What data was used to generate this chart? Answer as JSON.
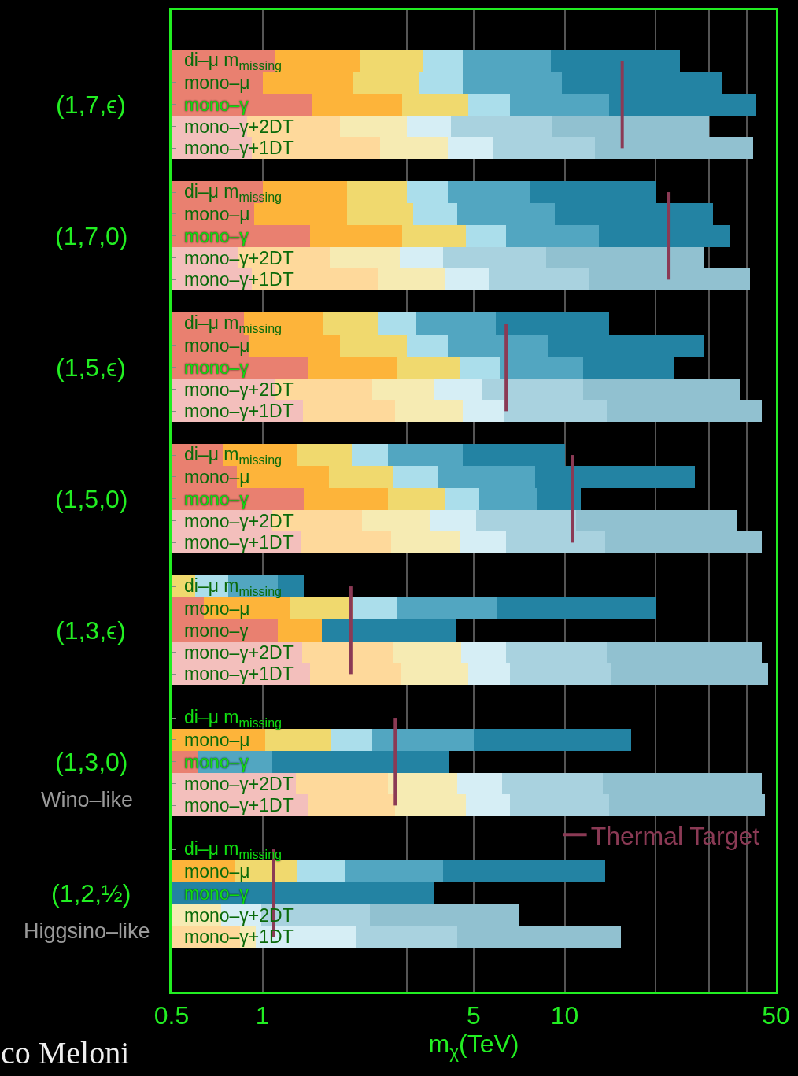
{
  "chart_data": {
    "type": "bar",
    "orientation": "horizontal",
    "log": "x",
    "xlabel": "m$_{χ}$(TeV)",
    "xlim": [
      0.5,
      50
    ],
    "xticks": [
      0.5,
      1,
      {
        "value": 3,
        "label": null
      },
      5,
      10,
      {
        "value": 20,
        "label": null
      },
      {
        "value": 30,
        "label": null
      },
      {
        "value": 40,
        "label": null
      },
      50
    ],
    "grid": "x",
    "legend": "bottom right",
    "categories": [
      "di–μ m$_{missing}$",
      "mono–μ",
      "mono–γ",
      "mono–γ+2DT",
      "mono–γ+1DT",
      null,
      "di–μ m$_{missing}$",
      "mono–μ",
      "mono–γ",
      "mono–γ+2DT",
      "mono–γ+1DT",
      null,
      "di–μ m$_{missing}$",
      "mono–μ",
      "mono–γ",
      "mono–γ+2DT",
      "mono–γ+1DT",
      null,
      "di–μ m$_{missing}$",
      "mono–μ",
      "mono–γ",
      "mono–γ+2DT",
      "mono–γ+1DT",
      null,
      "di–μ m$_{missing}$",
      "mono–μ",
      "mono–γ",
      "mono–γ+2DT",
      "mono–γ+1DT",
      null,
      "di–μ m$_{missing}$",
      "mono–μ",
      "mono–γ",
      "mono–γ+2DT",
      "mono–γ+1DT",
      null,
      "di–μ m$_{missing}$",
      "mono–μ",
      "mono–γ",
      "mono–γ+2DT",
      "mono–γ+1DT"
    ],
    "annotations": [
      "(1,7,ϵ)",
      "(1,7,0)",
      "(1,5,ϵ)",
      "(1,5,0)",
      "(1,3,ϵ)",
      "(1,3,0)",
      "(1,2,½)",
      "Wino–like",
      "Higgsino–like",
      "co Meloni"
    ],
    "series": [
      {
        "base": [
          0.5,
          0.5,
          0.5,
          0.5,
          0.5,
          null,
          0.5,
          0.5,
          0.5,
          0.5,
          0.5,
          null,
          0.5,
          0.5,
          0.5,
          0.5,
          0.5,
          null,
          0.5,
          0.5,
          0.5,
          0.5,
          0.5,
          null,
          null,
          0.5,
          0.5,
          0.5,
          0.5,
          null,
          null,
          null,
          0.5,
          0.5,
          0.5,
          null,
          null,
          null,
          null,
          null,
          null
        ],
        "values": [
          0.6,
          0.5,
          0.95,
          0.39,
          0.42,
          null,
          0.5,
          0.44,
          0.94,
          0.33,
          0.42,
          null,
          0.37,
          0.4,
          0.92,
          0.6,
          0.86,
          null,
          0.24,
          0.32,
          0.87,
          0.57,
          0.84,
          null,
          null,
          0.14,
          0.62,
          0.85,
          0.94,
          null,
          null,
          null,
          0.11,
          0.79,
          0.92,
          null,
          null,
          null,
          null,
          null,
          null
        ],
        "colors": [
          "#e98070",
          "#e98070",
          "#e98070",
          "#f3bfbc",
          "#f3bfbc",
          "#e98070",
          "#e98070",
          "#e98070",
          "#e98070",
          "#f3bfbc",
          "#f3bfbc",
          "#e98070",
          "#e98070",
          "#e98070",
          "#e98070",
          "#f3bfbc",
          "#f3bfbc",
          "#e98070",
          "#e98070",
          "#e98070",
          "#e98070",
          "#f3bfbc",
          "#f3bfbc",
          "#e98070",
          "#e98070",
          "#e98070",
          "#e98070",
          "#f3bfbc",
          "#f3bfbc",
          "#e98070",
          "#e98070",
          "#e98070",
          "#e98070",
          "#f3bfbc",
          "#f3bfbc",
          "#e98070",
          "#e98070",
          "#e98070",
          "#e98070",
          "#f3bfbc",
          "#f3bfbc"
        ]
      },
      {
        "base": [
          1.1,
          1.0,
          1.45,
          0.89,
          0.92,
          null,
          1.0,
          0.94,
          1.44,
          0.83,
          0.92,
          null,
          0.87,
          0.9,
          1.42,
          1.1,
          1.36,
          null,
          0.74,
          0.82,
          1.37,
          1.07,
          1.34,
          null,
          null,
          0.64,
          1.12,
          1.35,
          1.44,
          null,
          null,
          0.5,
          null,
          1.29,
          1.42,
          null,
          null,
          0.5,
          null,
          null,
          0.5
        ],
        "values": [
          1.0,
          1.0,
          1.45,
          0.91,
          1.53,
          null,
          0.9,
          0.96,
          1.46,
          0.84,
          1.48,
          null,
          0.71,
          0.9,
          1.38,
          1.2,
          1.39,
          null,
          0.56,
          0.84,
          1.23,
          1.07,
          1.33,
          null,
          null,
          0.6,
          0.45,
          1.35,
          1.43,
          null,
          null,
          0.52,
          null,
          1.31,
          1.33,
          null,
          null,
          0.31,
          null,
          null,
          0.34
        ],
        "colors": [
          "#fdb43a",
          "#fdb43a",
          "#fdb43a",
          "#fed99b",
          "#fed99b",
          "#fdb43a",
          "#fdb43a",
          "#fdb43a",
          "#fdb43a",
          "#fed99b",
          "#fed99b",
          "#fdb43a",
          "#fdb43a",
          "#fdb43a",
          "#fdb43a",
          "#fed99b",
          "#fed99b",
          "#fdb43a",
          "#fdb43a",
          "#fdb43a",
          "#fdb43a",
          "#fed99b",
          "#fed99b",
          "#fdb43a",
          "#fdb43a",
          "#fdb43a",
          "#fdb43a",
          "#fed99b",
          "#fed99b",
          "#fdb43a",
          "#fdb43a",
          "#fdb43a",
          "#fdb43a",
          "#fed99b",
          "#fed99b",
          "#fdb43a",
          "#fdb43a",
          "#fdb43a",
          "#fdb43a",
          "#fed99b",
          "#fed99b"
        ]
      },
      {
        "base": [
          2.1,
          2.0,
          2.9,
          1.8,
          2.45,
          null,
          1.9,
          1.9,
          2.9,
          1.67,
          2.4,
          null,
          1.58,
          1.8,
          2.8,
          2.3,
          2.75,
          null,
          1.3,
          1.66,
          2.6,
          2.14,
          2.67,
          null,
          0.5,
          1.24,
          null,
          2.7,
          2.87,
          null,
          null,
          1.02,
          null,
          2.6,
          2.75,
          null,
          null,
          0.81,
          null,
          0.5,
          0.84
        ],
        "values": [
          1.3,
          1.3,
          1.9,
          1.2,
          1.65,
          null,
          1.1,
          1.25,
          1.8,
          1.18,
          1.6,
          null,
          0.82,
          1.2,
          1.7,
          1.4,
          1.85,
          null,
          0.67,
          1.04,
          1.4,
          1.46,
          1.83,
          null,
          0.1,
          0.76,
          null,
          1.85,
          1.93,
          null,
          null,
          0.66,
          null,
          1.8,
          1.95,
          null,
          null,
          0.49,
          null,
          0.23,
          0.11
        ],
        "colors": [
          "#f0d96e",
          "#f0d96e",
          "#f0d96e",
          "#f6ebb3",
          "#f6ebb3",
          "#f0d96e",
          "#f0d96e",
          "#f0d96e",
          "#f0d96e",
          "#f6ebb3",
          "#f6ebb3",
          "#f0d96e",
          "#f0d96e",
          "#f0d96e",
          "#f0d96e",
          "#f6ebb3",
          "#f6ebb3",
          "#f0d96e",
          "#f0d96e",
          "#f0d96e",
          "#f0d96e",
          "#f6ebb3",
          "#f6ebb3",
          "#f0d96e",
          "#f0d96e",
          "#f0d96e",
          "#f0d96e",
          "#f6ebb3",
          "#f6ebb3",
          "#f0d96e",
          "#f0d96e",
          "#f0d96e",
          "#f0d96e",
          "#f6ebb3",
          "#f6ebb3",
          "#f0d96e",
          "#f0d96e",
          "#f0d96e",
          "#f0d96e",
          "#f6ebb3",
          "#f6ebb3"
        ]
      },
      {
        "base": [
          3.4,
          3.3,
          4.8,
          3.0,
          4.1,
          null,
          3.0,
          3.15,
          4.7,
          2.85,
          4.0,
          null,
          2.4,
          3.0,
          4.5,
          3.7,
          4.6,
          null,
          1.97,
          2.7,
          4.0,
          3.6,
          4.5,
          null,
          0.6,
          2.0,
          null,
          4.55,
          4.8,
          null,
          null,
          1.68,
          null,
          4.4,
          4.7,
          null,
          null,
          1.3,
          null,
          0.73,
          0.95
        ],
        "values": [
          1.2,
          1.3,
          1.8,
          1.2,
          1.7,
          null,
          1.1,
          1.25,
          1.7,
          1.1,
          1.6,
          null,
          0.8,
          1.1,
          1.6,
          1.6,
          1.7,
          null,
          0.63,
          1.1,
          1.2,
          1.5,
          1.9,
          null,
          0.17,
          0.8,
          null,
          1.85,
          1.8,
          null,
          null,
          0.62,
          null,
          1.8,
          1.9,
          null,
          null,
          0.57,
          null,
          0.26,
          1.09
        ],
        "colors": [
          "#abdeeb",
          "#abdeeb",
          "#abdeeb",
          "#d6eef5",
          "#d6eef5",
          "#abdeeb",
          "#abdeeb",
          "#abdeeb",
          "#abdeeb",
          "#d6eef5",
          "#d6eef5",
          "#abdeeb",
          "#abdeeb",
          "#abdeeb",
          "#abdeeb",
          "#d6eef5",
          "#d6eef5",
          "#abdeeb",
          "#abdeeb",
          "#abdeeb",
          "#abdeeb",
          "#d6eef5",
          "#d6eef5",
          "#abdeeb",
          "#abdeeb",
          "#abdeeb",
          "#abdeeb",
          "#d6eef5",
          "#d6eef5",
          "#abdeeb",
          "#abdeeb",
          "#abdeeb",
          "#abdeeb",
          "#d6eef5",
          "#d6eef5",
          "#abdeeb",
          "#abdeeb",
          "#abdeeb",
          "#abdeeb",
          "#d6eef5",
          "#d6eef5"
        ]
      },
      {
        "base": [
          4.6,
          4.6,
          6.6,
          4.2,
          5.8,
          null,
          4.1,
          4.4,
          6.4,
          3.95,
          5.6,
          null,
          3.2,
          4.1,
          6.1,
          5.3,
          6.3,
          null,
          2.6,
          3.8,
          5.2,
          5.1,
          6.4,
          null,
          0.77,
          2.8,
          null,
          6.4,
          6.6,
          null,
          null,
          2.3,
          0.61,
          6.2,
          6.6,
          null,
          null,
          1.87,
          null,
          0.99,
          2.04
        ],
        "values": [
          4.4,
          5.2,
          7.4,
          4.9,
          6.8,
          null,
          3.6,
          4.9,
          6.6,
          4.75,
          6.4,
          null,
          2.7,
          4.7,
          5.4,
          6.2,
          7.5,
          null,
          2.0,
          4.2,
          2.9,
          5.8,
          7.2,
          null,
          0.35,
          3.2,
          null,
          7.4,
          7.6,
          null,
          null,
          2.7,
          0.47,
          7.2,
          7.4,
          null,
          null,
          2.08,
          null,
          1.28,
          2.36
        ],
        "colors": [
          "#52a6c1",
          "#52a6c1",
          "#52a6c1",
          "#a9d2df",
          "#a9d2df",
          "#52a6c1",
          "#52a6c1",
          "#52a6c1",
          "#52a6c1",
          "#a9d2df",
          "#a9d2df",
          "#52a6c1",
          "#52a6c1",
          "#52a6c1",
          "#52a6c1",
          "#a9d2df",
          "#a9d2df",
          "#52a6c1",
          "#52a6c1",
          "#52a6c1",
          "#52a6c1",
          "#a9d2df",
          "#a9d2df",
          "#52a6c1",
          "#52a6c1",
          "#52a6c1",
          "#52a6c1",
          "#a9d2df",
          "#a9d2df",
          "#52a6c1",
          "#52a6c1",
          "#52a6c1",
          "#52a6c1",
          "#a9d2df",
          "#a9d2df",
          "#52a6c1",
          "#52a6c1",
          "#52a6c1",
          "#52a6c1",
          "#a9d2df",
          "#a9d2df"
        ]
      },
      {
        "base": [
          9.0,
          9.8,
          14,
          9.1,
          12.6,
          null,
          7.7,
          9.3,
          13,
          8.7,
          12,
          null,
          5.9,
          8.8,
          11.5,
          11.5,
          13.8,
          null,
          4.6,
          8.0,
          8.1,
          10.9,
          13.6,
          null,
          1.12,
          6.0,
          1.57,
          13.8,
          14.2,
          null,
          null,
          5.0,
          1.08,
          13.4,
          14,
          null,
          null,
          3.95,
          0.5,
          2.27,
          4.4
        ],
        "values": [
          15,
          23.2,
          29,
          20.9,
          29.4,
          null,
          12.3,
          21.7,
          22,
          20.3,
          29,
          null,
          8.1,
          20.2,
          11.5,
          26.5,
          31.2,
          null,
          5.4,
          19,
          3.2,
          26.1,
          31.4,
          null,
          0.25,
          14,
          2.78,
          31.2,
          32.8,
          null,
          null,
          11.6,
          3.07,
          31.6,
          32,
          null,
          null,
          9.65,
          3.2,
          4.83,
          10.9
        ],
        "colors": [
          "#2383a3",
          "#2383a3",
          "#2383a3",
          "#91c1d0",
          "#91c1d0",
          "#2383a3",
          "#2383a3",
          "#2383a3",
          "#2383a3",
          "#91c1d0",
          "#91c1d0",
          "#2383a3",
          "#2383a3",
          "#2383a3",
          "#2383a3",
          "#91c1d0",
          "#91c1d0",
          "#2383a3",
          "#2383a3",
          "#2383a3",
          "#2383a3",
          "#91c1d0",
          "#91c1d0",
          "#2383a3",
          "#2383a3",
          "#2383a3",
          "#2383a3",
          "#91c1d0",
          "#91c1d0",
          "#2383a3",
          "#2383a3",
          "#2383a3",
          "#2383a3",
          "#91c1d0",
          "#91c1d0",
          "#2383a3",
          "#2383a3",
          "#2383a3",
          "#2383a3",
          "#91c1d0",
          "#91c1d0"
        ]
      },
      {
        "type": "line",
        "name": "Thermal Target",
        "color": "#8b3a55",
        "values": [
          15.5,
          15.5,
          15.5,
          15.5,
          15.5,
          null,
          22,
          22,
          22,
          22,
          22,
          null,
          6.4,
          6.4,
          6.4,
          6.4,
          6.4,
          null,
          10.6,
          10.6,
          10.6,
          10.6,
          10.6,
          null,
          1.96,
          1.96,
          1.96,
          1.96,
          1.96,
          null,
          2.75,
          2.75,
          2.75,
          2.75,
          2.75,
          null,
          1.09,
          1.09,
          1.09,
          1.09,
          1.09
        ]
      }
    ]
  }
}
